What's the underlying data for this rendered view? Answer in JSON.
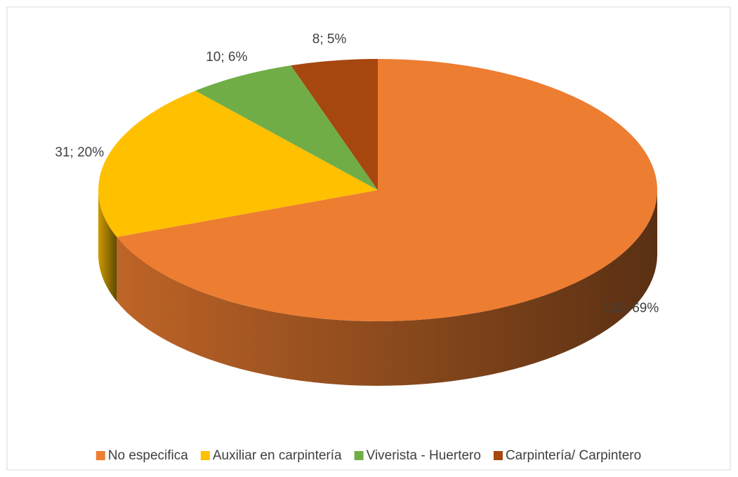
{
  "chart_data": {
    "type": "pie",
    "categories": [
      "No especifica",
      "Auxiliar en carpintería",
      "Viverista - Huertero",
      "Carpintería/ Carpintero"
    ],
    "values": [
      110,
      31,
      10,
      8
    ],
    "value_labels": [
      "110; 69%",
      "31; 20%",
      "10; 6%",
      "8; 5%"
    ],
    "colors": [
      "#ED7D31",
      "#FFC000",
      "#70AD47",
      "#A5470F"
    ],
    "legend": "bottom"
  }
}
